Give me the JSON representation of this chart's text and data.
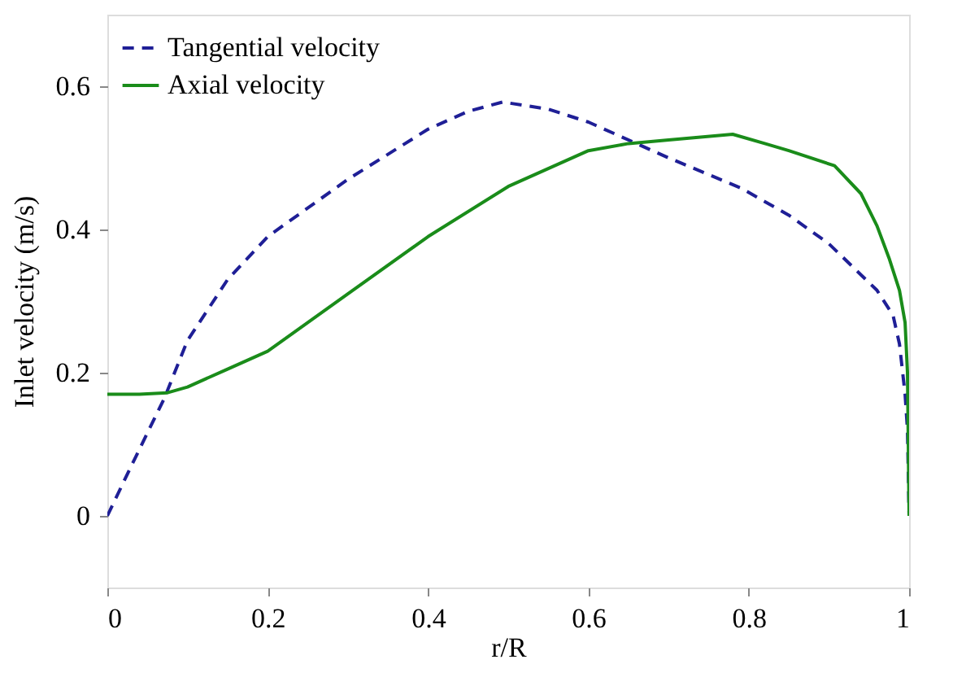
{
  "chart_data": {
    "type": "line",
    "xlabel": "r/R",
    "ylabel": "Inlet velocity (m/s)",
    "xlim": [
      0,
      1
    ],
    "xticks": [
      0,
      0.2,
      0.4,
      0.6,
      0.8,
      1
    ],
    "ylim": [
      -0.1,
      0.7
    ],
    "yticks": [
      0,
      0.2,
      0.4,
      0.6
    ],
    "grid": false,
    "legend": "top left",
    "marker": "none",
    "series": [
      {
        "name": "Tangential velocity",
        "color": "#1f1f96",
        "line_style": "dashed",
        "x": [
          0,
          0.03,
          0.071,
          0.1,
          0.15,
          0.2,
          0.3,
          0.4,
          0.45,
          0.493,
          0.55,
          0.6,
          0.66,
          0.7,
          0.79,
          0.85,
          0.9,
          0.96,
          0.98,
          0.988,
          0.995,
          0.998,
          1
        ],
        "values": [
          0,
          0.07,
          0.164,
          0.245,
          0.33,
          0.39,
          0.47,
          0.54,
          0.565,
          0.578,
          0.568,
          0.55,
          0.52,
          0.5,
          0.458,
          0.42,
          0.38,
          0.315,
          0.28,
          0.24,
          0.17,
          0.12,
          0
        ]
      },
      {
        "name": "Axial velocity",
        "color": "#1a8c1a",
        "line_style": "solid",
        "x": [
          0,
          0.04,
          0.075,
          0.1,
          0.15,
          0.2,
          0.25,
          0.3,
          0.4,
          0.5,
          0.6,
          0.65,
          0.7,
          0.78,
          0.82,
          0.85,
          0.907,
          0.94,
          0.96,
          0.975,
          0.988,
          0.995,
          0.998,
          1
        ],
        "values": [
          0.17,
          0.17,
          0.172,
          0.18,
          0.205,
          0.23,
          0.27,
          0.31,
          0.39,
          0.46,
          0.51,
          0.52,
          0.525,
          0.533,
          0.52,
          0.51,
          0.489,
          0.45,
          0.405,
          0.36,
          0.315,
          0.27,
          0.2,
          0
        ]
      }
    ]
  }
}
